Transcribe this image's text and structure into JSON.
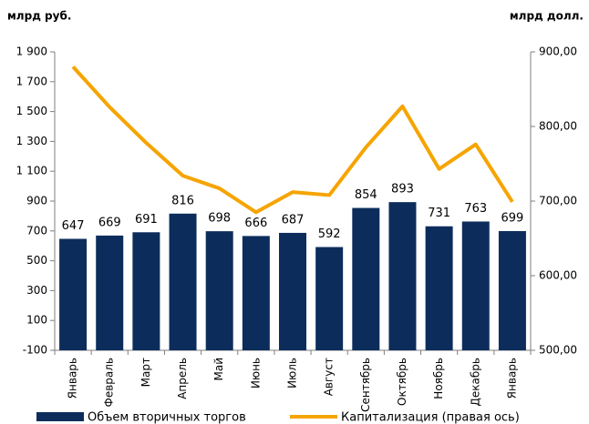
{
  "chart_data": {
    "type": "bar",
    "y_label": "млрд руб.",
    "y2_label": "млрд долл.",
    "categories": [
      "Январь",
      "Февраль",
      "Март",
      "Апрель",
      "Май",
      "Июнь",
      "Июль",
      "Август",
      "Сентябрь",
      "Октябрь",
      "Ноябрь",
      "Декабрь",
      "Январь"
    ],
    "series": [
      {
        "name": "Объем вторичных торгов",
        "type": "bar",
        "color": "#0c2d5c",
        "values": [
          647,
          669,
          691,
          816,
          698,
          666,
          687,
          592,
          854,
          893,
          731,
          763,
          699
        ]
      },
      {
        "name": "Капитализация (правая ось)",
        "type": "line",
        "axis": "y2",
        "color": "#f6a400",
        "values": [
          880,
          826,
          778,
          734,
          717,
          685,
          712,
          708,
          772,
          827,
          743,
          776,
          699
        ]
      }
    ],
    "ylim": [
      -100,
      1900
    ],
    "yticks": [
      {
        "value": -100,
        "label": "-100"
      },
      100,
      300,
      500,
      700,
      900,
      {
        "value": 1100,
        "label": "1 100"
      },
      {
        "value": 1300,
        "label": "1 300"
      },
      {
        "value": 1500,
        "label": "1 500"
      },
      {
        "value": 1700,
        "label": "1 700"
      },
      {
        "value": 1900,
        "label": "1 900"
      }
    ],
    "y2lim": [
      500,
      900
    ],
    "y2ticks": [
      {
        "value": 500,
        "label": "500,00"
      },
      {
        "value": 600,
        "label": "600,00"
      },
      {
        "value": 700,
        "label": "700,00"
      },
      {
        "value": 800,
        "label": "800,00"
      },
      {
        "value": 900,
        "label": "900,00"
      }
    ],
    "grid": false,
    "legend": "bottom"
  }
}
